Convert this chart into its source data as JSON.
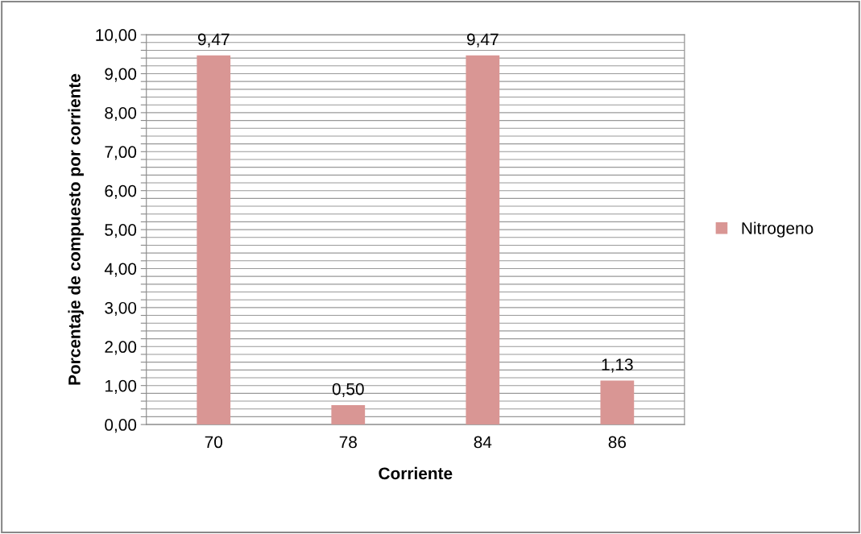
{
  "chart_data": {
    "type": "bar",
    "xlabel": "Corriente",
    "ylabel": "Porcentaje de compuesto por corriente",
    "categories": [
      "70",
      "78",
      "84",
      "86"
    ],
    "series": [
      {
        "name": "Nitrogeno",
        "color": "#d99694",
        "values": [
          9.47,
          0.5,
          9.47,
          1.13
        ],
        "value_labels": [
          "9,47",
          "0,50",
          "9,47",
          "1,13"
        ]
      }
    ],
    "ylim": [
      0,
      10
    ],
    "yticks": [
      {
        "value": 0,
        "label": "0,00"
      },
      {
        "value": 0.2,
        "label": null
      },
      {
        "value": 0.4,
        "label": null
      },
      {
        "value": 0.6,
        "label": null
      },
      {
        "value": 0.8,
        "label": null
      },
      {
        "value": 1,
        "label": "1,00"
      },
      {
        "value": 1.2,
        "label": null
      },
      {
        "value": 1.4,
        "label": null
      },
      {
        "value": 1.6,
        "label": null
      },
      {
        "value": 1.8,
        "label": null
      },
      {
        "value": 2,
        "label": "2,00"
      },
      {
        "value": 2.2,
        "label": null
      },
      {
        "value": 2.4,
        "label": null
      },
      {
        "value": 2.6,
        "label": null
      },
      {
        "value": 2.8,
        "label": null
      },
      {
        "value": 3,
        "label": "3,00"
      },
      {
        "value": 3.2,
        "label": null
      },
      {
        "value": 3.4,
        "label": null
      },
      {
        "value": 3.6,
        "label": null
      },
      {
        "value": 3.8,
        "label": null
      },
      {
        "value": 4,
        "label": "4,00"
      },
      {
        "value": 4.2,
        "label": null
      },
      {
        "value": 4.4,
        "label": null
      },
      {
        "value": 4.6,
        "label": null
      },
      {
        "value": 4.8,
        "label": null
      },
      {
        "value": 5,
        "label": "5,00"
      },
      {
        "value": 5.2,
        "label": null
      },
      {
        "value": 5.4,
        "label": null
      },
      {
        "value": 5.6,
        "label": null
      },
      {
        "value": 5.8,
        "label": null
      },
      {
        "value": 6,
        "label": "6,00"
      },
      {
        "value": 6.2,
        "label": null
      },
      {
        "value": 6.4,
        "label": null
      },
      {
        "value": 6.6,
        "label": null
      },
      {
        "value": 6.8,
        "label": null
      },
      {
        "value": 7,
        "label": "7,00"
      },
      {
        "value": 7.2,
        "label": null
      },
      {
        "value": 7.4,
        "label": null
      },
      {
        "value": 7.6,
        "label": null
      },
      {
        "value": 7.8,
        "label": null
      },
      {
        "value": 8,
        "label": "8,00"
      },
      {
        "value": 8.2,
        "label": null
      },
      {
        "value": 8.4,
        "label": null
      },
      {
        "value": 8.6,
        "label": null
      },
      {
        "value": 8.8,
        "label": null
      },
      {
        "value": 9,
        "label": "9,00"
      },
      {
        "value": 9.2,
        "label": null
      },
      {
        "value": 9.4,
        "label": null
      },
      {
        "value": 9.6,
        "label": null
      },
      {
        "value": 9.8,
        "label": null
      },
      {
        "value": 10,
        "label": "10,00"
      }
    ],
    "grid": "y",
    "legend": "right"
  }
}
